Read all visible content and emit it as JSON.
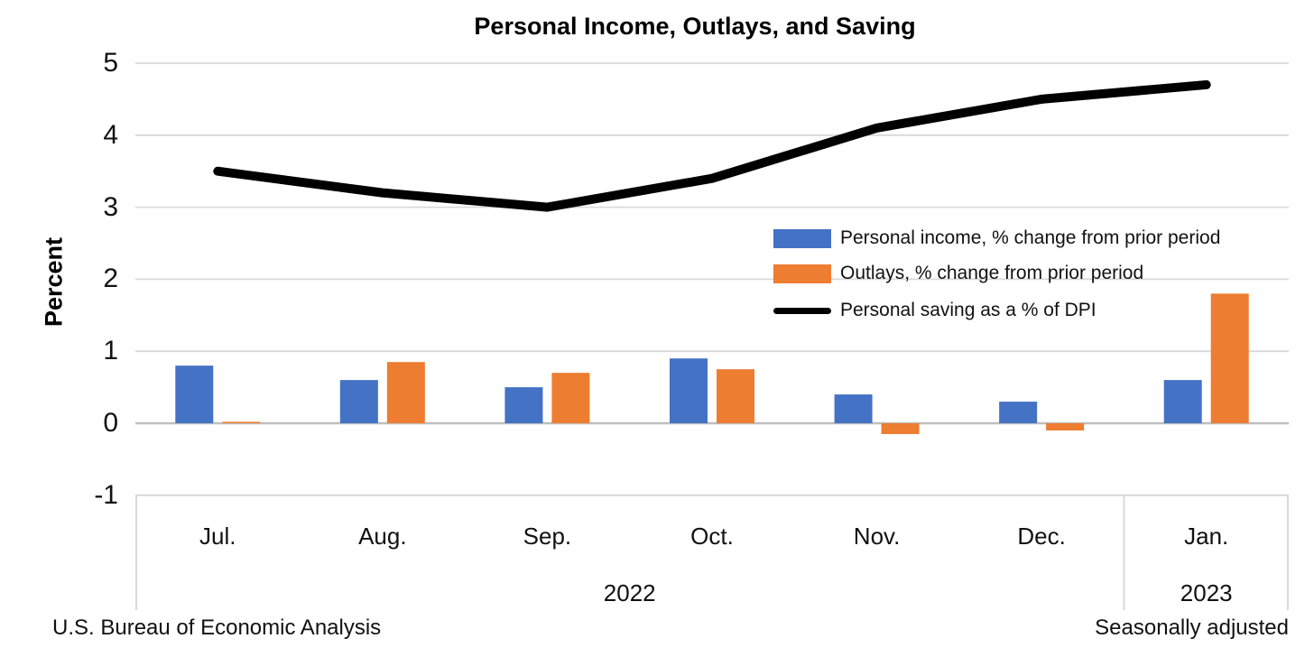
{
  "title": "Personal Income, Outlays, and Saving",
  "footer": {
    "left": "U.S. Bureau of Economic Analysis",
    "right": "Seasonally adjusted"
  },
  "chart_data": {
    "type": "bar+line",
    "title": "Personal Income, Outlays, and Saving",
    "ylabel": "Percent",
    "ylim": [
      -1,
      5
    ],
    "yticks": [
      5,
      4,
      3,
      2,
      1,
      0,
      -1
    ],
    "grid": true,
    "legend_position": "inside-right",
    "categories": [
      "Jul.",
      "Aug.",
      "Sep.",
      "Oct.",
      "Nov.",
      "Dec.",
      "Jan."
    ],
    "year_groups": [
      {
        "label": "2022",
        "span": [
          0,
          5
        ]
      },
      {
        "label": "2023",
        "span": [
          6,
          6
        ]
      }
    ],
    "series": [
      {
        "name": "Personal income, % change from prior period",
        "type": "bar",
        "color": "#4472C4",
        "values": [
          0.8,
          0.6,
          0.5,
          0.9,
          0.4,
          0.3,
          0.6
        ]
      },
      {
        "name": "Outlays, % change from prior period",
        "type": "bar",
        "color": "#ED7D31",
        "values": [
          0.02,
          0.85,
          0.7,
          0.75,
          -0.15,
          -0.1,
          1.8
        ]
      },
      {
        "name": "Personal saving as a % of DPI",
        "type": "line",
        "color": "#000000",
        "values": [
          3.5,
          3.2,
          3.0,
          3.4,
          4.1,
          4.5,
          4.7
        ]
      }
    ],
    "colors": {
      "gridline": "#D9D9D9",
      "zero_line": "#BFBFBF",
      "axis_box": "#D9D9D9"
    }
  }
}
